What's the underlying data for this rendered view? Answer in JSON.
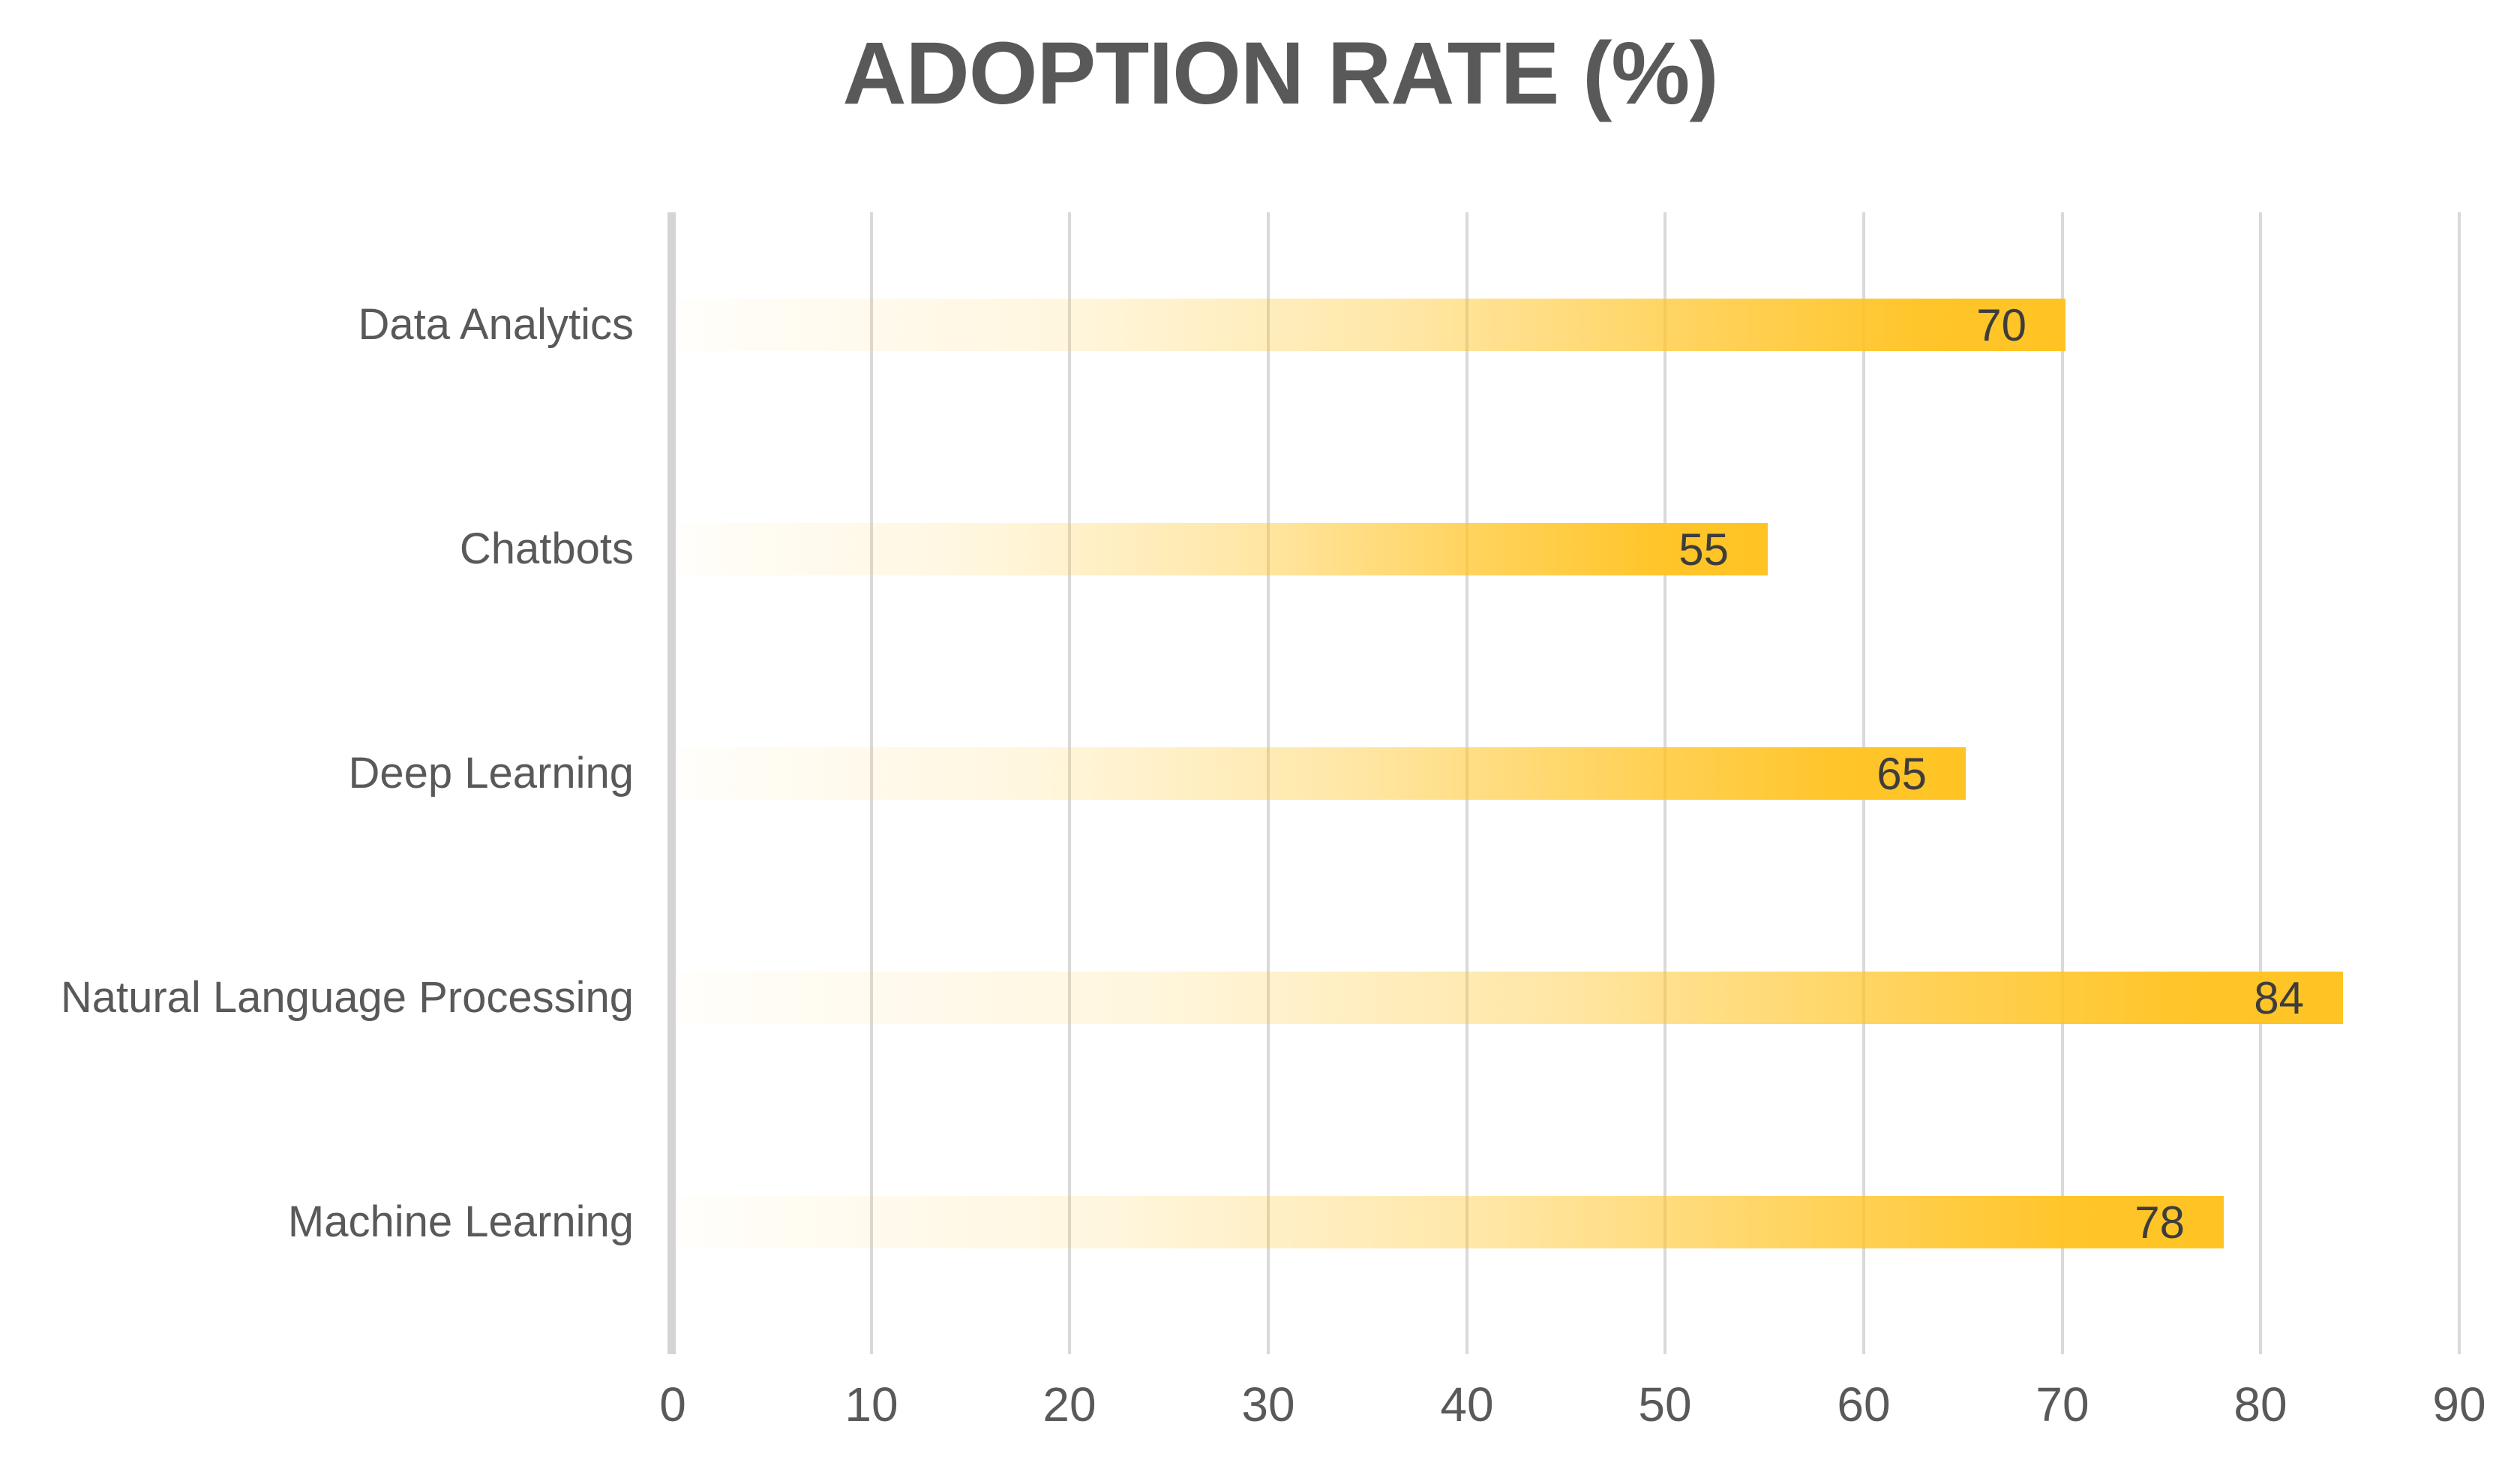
{
  "chart_data": {
    "type": "bar",
    "orientation": "horizontal",
    "title": "ADOPTION RATE (%)",
    "categories": [
      "Data Analytics",
      "Chatbots",
      "Deep Learning",
      "Natural Language Processing",
      "Machine Learning"
    ],
    "values": [
      70,
      55,
      65,
      84,
      78
    ],
    "series": [
      {
        "name": "Adoption Rate",
        "values": [
          70,
          55,
          65,
          84,
          78
        ]
      }
    ],
    "xlabel": "",
    "ylabel": "",
    "xlim": [
      0,
      90
    ],
    "x_ticks": [
      0,
      10,
      20,
      30,
      40,
      50,
      60,
      70,
      80,
      90
    ],
    "grid": "vertical-gridlines-on",
    "legend": "none",
    "data_labels": "inside-end"
  },
  "colors": {
    "bar_gold": "#ffc323",
    "bar_fade_start": "#fffdf6",
    "gridline": "#d9d9d9",
    "axis_line": "#d4d4d4",
    "title_text": "#595959",
    "category_text": "#595959",
    "tick_text": "#595959",
    "value_text": "#3d3d3d",
    "background": "#ffffff"
  }
}
